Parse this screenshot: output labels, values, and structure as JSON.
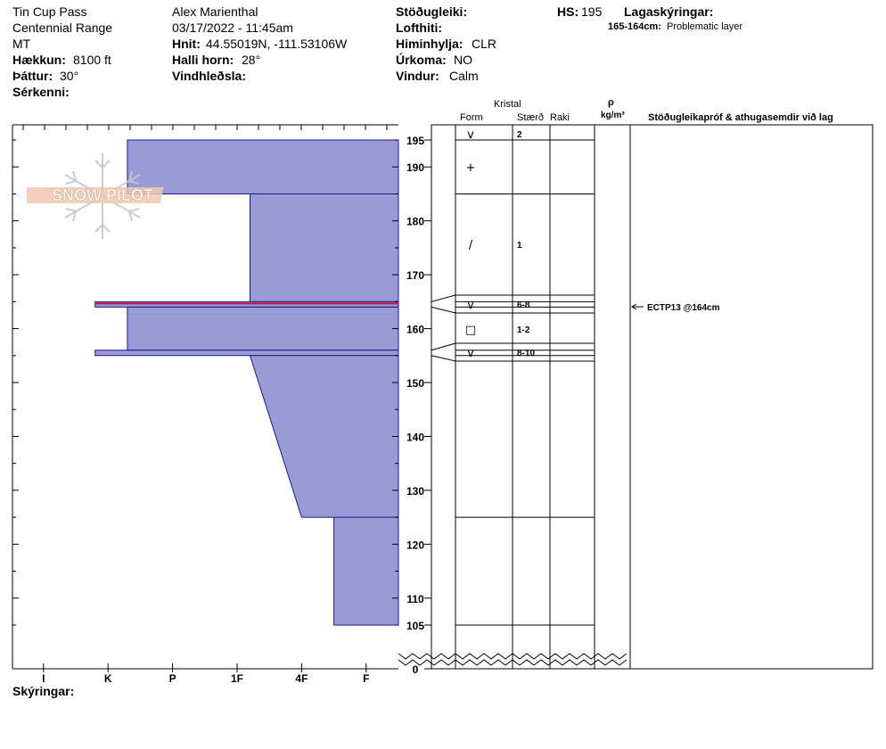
{
  "header": {
    "location": "Tin Cup Pass",
    "range": "Centennial Range",
    "state": "MT",
    "elevation_label": "Hækkun:",
    "elevation_value": "8100 ft",
    "aspect_label": "Þáttur:",
    "aspect_value": "30°",
    "specifics_label": "Sérkenni:",
    "observer": "Alex Marienthal",
    "datetime": "03/17/2022 - 11:45am",
    "coords_label": "Hnit:",
    "coords_value": "44.55019N, -111.53106W",
    "slope_label": "Halli horn:",
    "slope_value": "28°",
    "windload_label": "Vindhleðsla:",
    "stability_label": "Stöðugleiki:",
    "airtemp_label": "Lofthiti:",
    "sky_label": "Himinhylja:",
    "sky_value": "CLR",
    "precip_label": "Úrkoma:",
    "precip_value": "NO",
    "wind_label": "Vindur:",
    "wind_value": "Calm",
    "hs_label": "HS:",
    "hs_value": "195",
    "layer_notes_label": "Lagaskýringar:",
    "layer_note_range": "165-164cm:",
    "layer_note_text": "Problematic layer"
  },
  "columns": {
    "crystal": "Kristal",
    "form": "Form",
    "size": "Stærð",
    "moisture": "Raki",
    "rho": "ρ",
    "density_unit": "kg/m³",
    "tests": "Stöðugleikapróf & athugasemdir við lag"
  },
  "footer": {
    "notes_label": "Skýringar:"
  },
  "logo_text": "SNOW PILOT",
  "chart_data": {
    "type": "snow-profile",
    "hardness_scale": [
      "I",
      "K",
      "P",
      "1F",
      "4F",
      "F"
    ],
    "height_ticks": [
      195,
      190,
      180,
      170,
      160,
      150,
      140,
      130,
      120,
      110,
      105,
      0
    ],
    "hs": 195,
    "hardness_profile": [
      {
        "top": 195,
        "bottom": 185,
        "hardness_top": 4.2,
        "hardness_bottom": 4.2
      },
      {
        "top": 185,
        "bottom": 165,
        "hardness_top": 2.3,
        "hardness_bottom": 2.3
      },
      {
        "top": 165,
        "bottom": 164,
        "hardness_top": 4.7,
        "hardness_bottom": 4.7
      },
      {
        "top": 164,
        "bottom": 156,
        "hardness_top": 4.2,
        "hardness_bottom": 4.2
      },
      {
        "top": 156,
        "bottom": 155,
        "hardness_top": 4.7,
        "hardness_bottom": 4.7
      },
      {
        "top": 155,
        "bottom": 125,
        "hardness_top": 2.3,
        "hardness_bottom": 1.5
      },
      {
        "top": 125,
        "bottom": 105,
        "hardness_top": 1.0,
        "hardness_bottom": 1.0
      }
    ],
    "problem_layer": {
      "top": 165,
      "bottom": 164
    },
    "layer_lines": [
      195,
      185,
      165,
      164,
      156,
      155,
      125,
      105
    ],
    "crystals": [
      {
        "height": 194,
        "form": "v",
        "size": "2"
      },
      {
        "height": 190,
        "form": "+",
        "size": ""
      },
      {
        "height": 175,
        "form": "/",
        "size": "1"
      },
      {
        "height": 164.5,
        "form": "v",
        "size": "6-8"
      },
      {
        "height": 160,
        "form": "□",
        "size": "1-2"
      },
      {
        "height": 155.5,
        "form": "v",
        "size": "8-10"
      }
    ],
    "tests": [
      {
        "height": 164,
        "text": "ECTP13 @164cm"
      }
    ]
  }
}
